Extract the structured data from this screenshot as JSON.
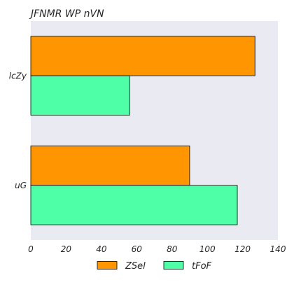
{
  "chart_data": {
    "type": "bar",
    "orientation": "horizontal",
    "title": "JFNMR WP nVN",
    "xlabel": "",
    "ylabel": "",
    "categories": [
      "lcZy",
      "uG"
    ],
    "series": [
      {
        "name": "ZSel",
        "values": [
          127,
          90
        ],
        "color": "#ff9500"
      },
      {
        "name": "tFoF",
        "values": [
          56,
          117
        ],
        "color": "#4fffa8"
      }
    ],
    "xlim": [
      0,
      140
    ],
    "xticks": [
      "0",
      "20",
      "40",
      "60",
      "80",
      "100",
      "120",
      "140"
    ],
    "grid": false,
    "legend": "bottom-center",
    "plot_background": "#eaeaf2"
  }
}
